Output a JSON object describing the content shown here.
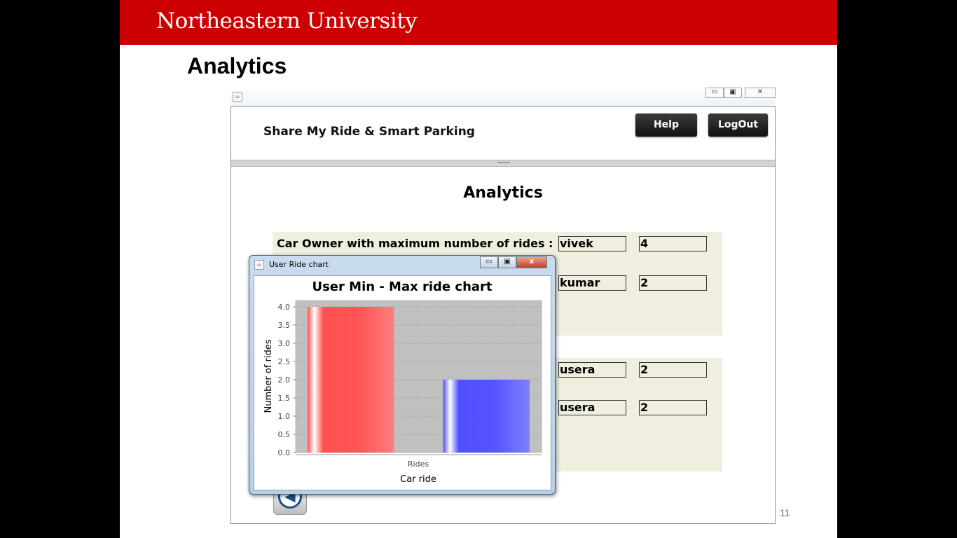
{
  "slide": {
    "university": "Northeastern University",
    "title": "Analytics",
    "page_number": "11"
  },
  "app": {
    "name": "Share My Ride & Smart Parking",
    "help_label": "Help",
    "logout_label": "LogOut",
    "heading": "Analytics",
    "rows": [
      {
        "label": "Car Owner with maximum number of rides :",
        "name": "vivek",
        "count": "4"
      },
      {
        "label": "",
        "name": "kumar",
        "count": "2"
      },
      {
        "label": "",
        "name": "usera",
        "count": "2"
      },
      {
        "label": "",
        "name": "usera",
        "count": "2"
      }
    ],
    "window_controls": [
      "minimize",
      "maximize",
      "close"
    ]
  },
  "dialog": {
    "title": "User Ride chart",
    "close_glyph": "x"
  },
  "chart_data": {
    "type": "bar",
    "title": "User Min - Max ride chart",
    "xlabel": "Car ride",
    "ylabel": "Number of rides",
    "categories": [
      "Rides"
    ],
    "series": [
      {
        "values": [
          4.0
        ],
        "color": "#ff5555"
      },
      {
        "values": [
          2.0
        ],
        "color": "#5555ff"
      }
    ],
    "ylim": [
      0,
      4.0
    ],
    "yticks": [
      "0.0",
      "0.5",
      "1.0",
      "1.5",
      "2.0",
      "2.5",
      "3.0",
      "3.5",
      "4.0"
    ],
    "grid": true,
    "plot_background": "#c0c0c0"
  }
}
